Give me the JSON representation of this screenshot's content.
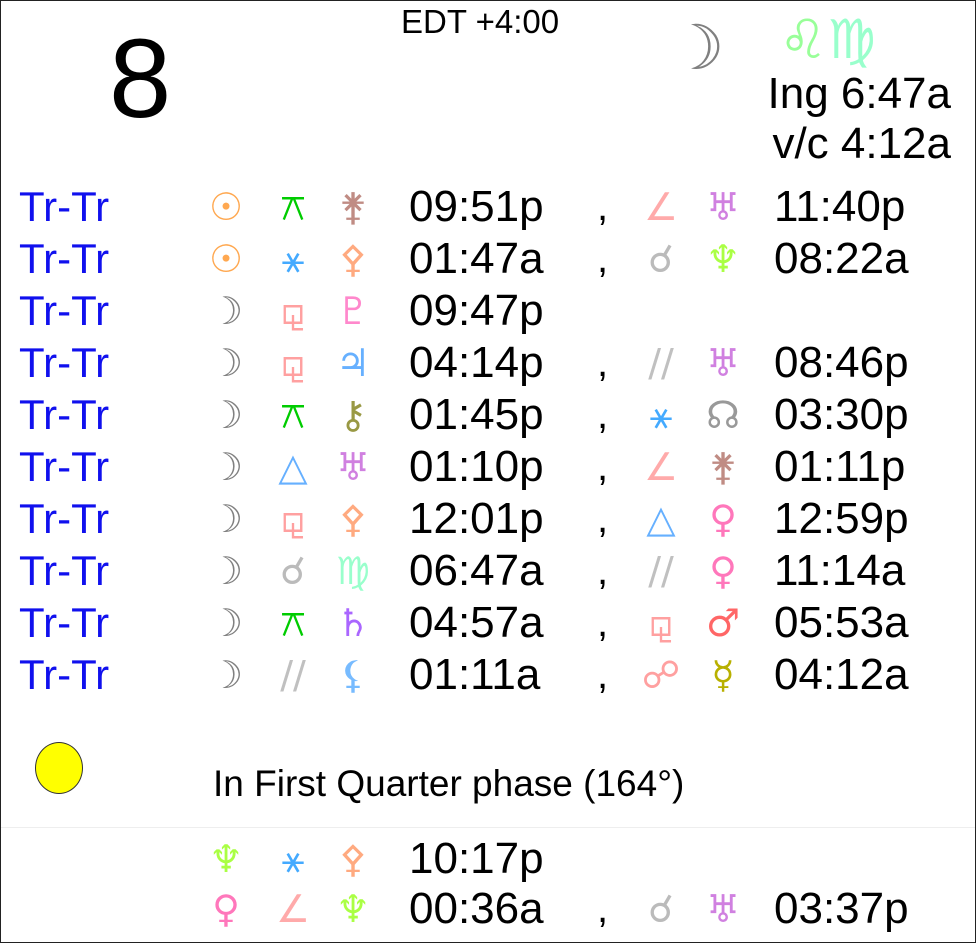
{
  "header": {
    "day": "8",
    "timezone": "EDT +4:00",
    "moon_glyph": "☽",
    "moon_color": "#808080",
    "signs": [
      {
        "glyph": "♌",
        "color": "#99ff99",
        "name": "leo"
      },
      {
        "glyph": "♍",
        "color": "#99ffcc",
        "name": "virgo"
      }
    ],
    "ingress": "Ing 6:47a",
    "void_of_course": "v/c 4:12a"
  },
  "aspects": [
    {
      "label": "Tr-Tr",
      "a": [
        "sun",
        "quincunx",
        "juno"
      ],
      "t1": "09:51p",
      "b": [
        "semisquare",
        "uranus"
      ],
      "t2": "11:40p"
    },
    {
      "label": "Tr-Tr",
      "a": [
        "sun",
        "sextile",
        "pallas"
      ],
      "t1": "01:47a",
      "b": [
        "conjunction",
        "neptune"
      ],
      "t2": "08:22a"
    },
    {
      "label": "Tr-Tr",
      "a": [
        "moon",
        "sesquiquadrate",
        "pluto"
      ],
      "t1": "09:47p",
      "b": null,
      "t2": null
    },
    {
      "label": "Tr-Tr",
      "a": [
        "moon",
        "sesquiquadrate",
        "jupiter"
      ],
      "t1": "04:14p",
      "b": [
        "parallel",
        "uranus"
      ],
      "t2": "08:46p"
    },
    {
      "label": "Tr-Tr",
      "a": [
        "moon",
        "quincunx",
        "chiron"
      ],
      "t1": "01:45p",
      "b": [
        "sextile",
        "node"
      ],
      "t2": "03:30p"
    },
    {
      "label": "Tr-Tr",
      "a": [
        "moon",
        "trine",
        "uranus"
      ],
      "t1": "01:10p",
      "b": [
        "semisquare",
        "juno"
      ],
      "t2": "01:11p"
    },
    {
      "label": "Tr-Tr",
      "a": [
        "moon",
        "sesquiquadrate",
        "pallas"
      ],
      "t1": "12:01p",
      "b": [
        "trine",
        "venus"
      ],
      "t2": "12:59p"
    },
    {
      "label": "Tr-Tr",
      "a": [
        "moon",
        "conjunction",
        "virgo"
      ],
      "t1": "06:47a",
      "b": [
        "parallel",
        "venus"
      ],
      "t2": "11:14a"
    },
    {
      "label": "Tr-Tr",
      "a": [
        "moon",
        "quincunx",
        "saturn"
      ],
      "t1": "04:57a",
      "b": [
        "sesquiquadrate",
        "mars"
      ],
      "t2": "05:53a"
    },
    {
      "label": "Tr-Tr",
      "a": [
        "moon",
        "parallel",
        "lilith"
      ],
      "t1": "01:11a",
      "b": [
        "opposition",
        "mercury"
      ],
      "t2": "04:12a"
    }
  ],
  "phase": {
    "text": "In First Quarter phase (164°)",
    "dot_color": "#ffff00"
  },
  "extra": [
    {
      "a": [
        "neptune",
        "sextile",
        "pallas"
      ],
      "t1": "10:17p",
      "b": null,
      "t2": null
    },
    {
      "a": [
        "venus",
        "semisquare",
        "neptune"
      ],
      "t1": "00:36a",
      "b": [
        "conjunction",
        "uranus"
      ],
      "t2": "03:37p"
    }
  ],
  "comma": ",",
  "glyphs": {
    "sun": {
      "g": "☉",
      "c": "#ffa850"
    },
    "moon": {
      "g": "☽",
      "c": "#808080"
    },
    "quincunx": {
      "g": "⚻",
      "c": "#00cc00"
    },
    "sextile": {
      "g": "⚹",
      "c": "#44aaff"
    },
    "juno": {
      "g": "⚵",
      "c": "#c08c84"
    },
    "pallas": {
      "g": "⚴",
      "c": "#ffaa80"
    },
    "semisquare": {
      "g": "∠",
      "c": "#ffaaaa"
    },
    "uranus": {
      "g": "♅",
      "c": "#d080e0"
    },
    "conjunction": {
      "g": "☌",
      "c": "#bbbbbb"
    },
    "neptune": {
      "g": "♆",
      "c": "#aaff44"
    },
    "sesquiquadrate": {
      "g": "⚼",
      "c": "#ffa0a0"
    },
    "pluto": {
      "g": "♇",
      "c": "#ff88cc"
    },
    "jupiter": {
      "g": "♃",
      "c": "#66b0ff"
    },
    "parallel": {
      "g": "//",
      "c": "#c0c0c0"
    },
    "chiron": {
      "g": "⚷",
      "c": "#999944"
    },
    "node": {
      "g": "☊",
      "c": "#999999"
    },
    "trine": {
      "g": "△",
      "c": "#66b0ff"
    },
    "venus": {
      "g": "♀",
      "c": "#ff77bb"
    },
    "virgo": {
      "g": "♍",
      "c": "#99ffcc"
    },
    "saturn": {
      "g": "♄",
      "c": "#aa66ff"
    },
    "mars": {
      "g": "♂",
      "c": "#ff6666"
    },
    "lilith": {
      "g": "⚸",
      "c": "#77bbff"
    },
    "opposition": {
      "g": "☍",
      "c": "#ffa0a0"
    },
    "mercury": {
      "g": "☿",
      "c": "#b8b000"
    }
  }
}
